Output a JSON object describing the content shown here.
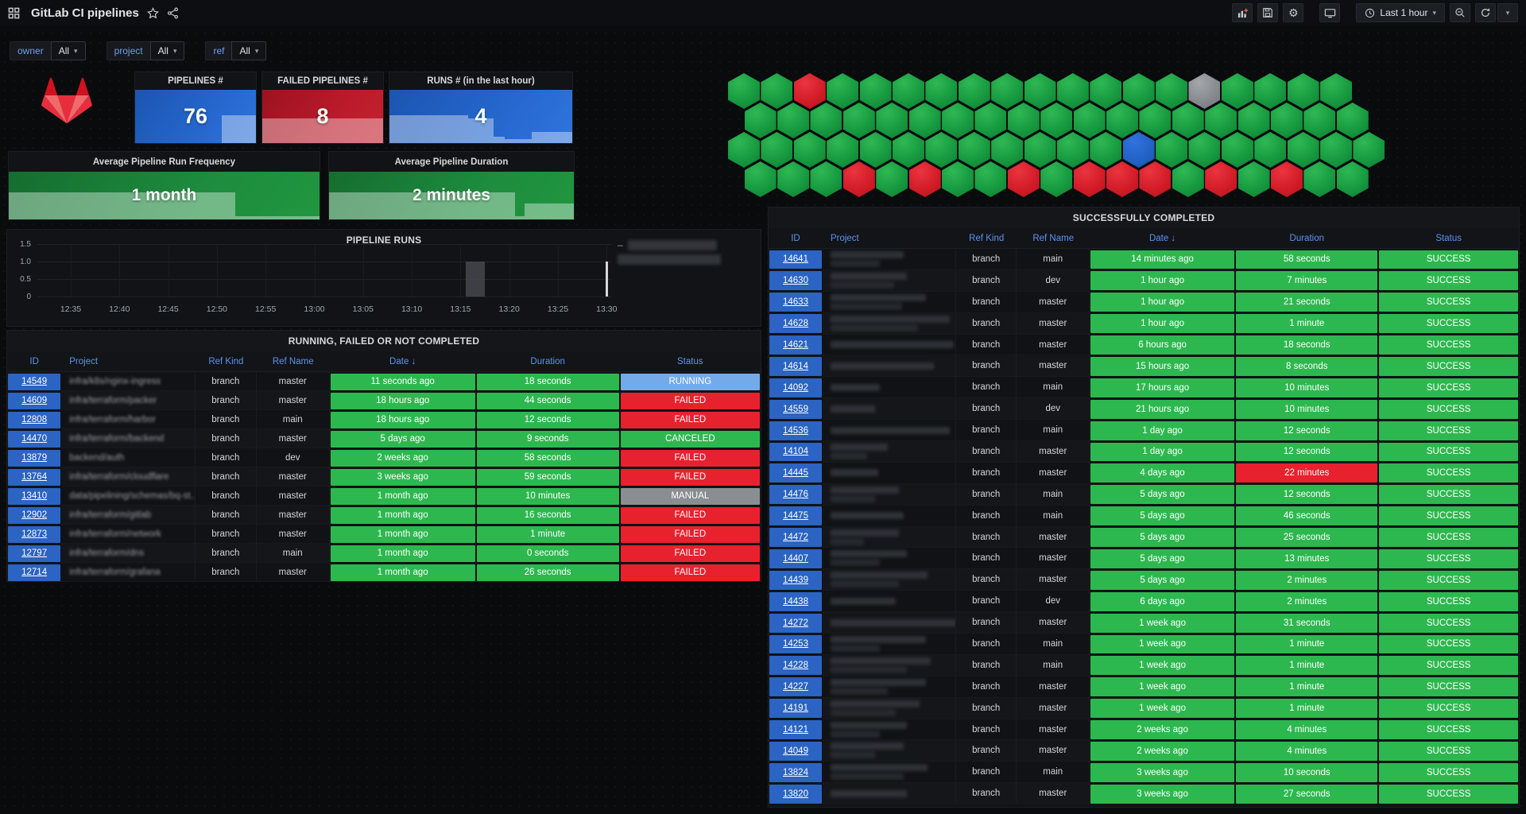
{
  "nav": {
    "title": "GitLab CI pipelines",
    "time_range": "Last 1 hour"
  },
  "filters": [
    {
      "label": "owner",
      "value": "All"
    },
    {
      "label": "project",
      "value": "All"
    },
    {
      "label": "ref",
      "value": "All"
    }
  ],
  "stat_panels": [
    {
      "title": "PIPELINES #",
      "value": "76",
      "theme": "blue",
      "spark": [
        [
          72,
          100,
          53
        ]
      ]
    },
    {
      "title": "FAILED PIPELINES #",
      "value": "8",
      "theme": "red",
      "spark": [
        [
          0,
          100,
          47
        ]
      ]
    },
    {
      "title": "RUNS # (in the last hour)",
      "value": "4",
      "theme": "blue",
      "spark": [
        [
          0,
          43,
          53
        ],
        [
          43,
          57,
          46
        ],
        [
          57,
          63,
          12
        ],
        [
          63,
          78,
          7
        ],
        [
          78,
          100,
          21
        ]
      ]
    }
  ],
  "average_panels": [
    {
      "title": "Average Pipeline Run Frequency",
      "value": "1 month",
      "theme": "green",
      "spark": [
        [
          0,
          73,
          56
        ],
        [
          73,
          100,
          7
        ]
      ]
    },
    {
      "title": "Average Pipeline Duration",
      "value": "2 minutes",
      "theme": "green",
      "spark": [
        [
          0,
          76,
          56
        ],
        [
          76,
          80,
          7
        ],
        [
          80,
          100,
          33
        ]
      ]
    }
  ],
  "hex_panel": {
    "status_colors": {
      "green": "#1ea04a",
      "red": "#d8202c",
      "gray": "#8d9196",
      "blue": "#2163c9"
    },
    "rows": [
      {
        "offset": false,
        "cells": "GGRGGGGGGGGGGGXGGGG"
      },
      {
        "offset": true,
        "cells": "GGGGGGGGGGGGGGGGGGG"
      },
      {
        "offset": false,
        "cells": "GGGGGGGGGGGGBGGGGGGG"
      },
      {
        "offset": true,
        "cells": "GGGRGRGGRGRRRGRGRGG"
      }
    ]
  },
  "pipeline_runs": {
    "title": "PIPELINE RUNS",
    "chart_data": {
      "type": "bar",
      "title": "PIPELINE RUNS",
      "x_ticks": [
        "12:35",
        "12:40",
        "12:45",
        "12:50",
        "12:55",
        "13:00",
        "13:05",
        "13:10",
        "13:15",
        "13:20",
        "13:25",
        "13:30"
      ],
      "y_ticks": [
        "1.5",
        "1.0",
        "0.5",
        "0"
      ],
      "ylim": [
        0,
        1.5
      ],
      "grid": true,
      "legend_position": "right",
      "legend_redacted_entries": 2,
      "bars": [
        {
          "x": "13:16",
          "y": 1
        },
        {
          "x": "13:17",
          "y": 1
        }
      ],
      "line_markers": [
        {
          "x": "13:30",
          "y": 1
        }
      ]
    },
    "legend_bar_widths": [
      112,
      130
    ]
  },
  "left_table": {
    "title": "RUNNING, FAILED OR NOT COMPLETED",
    "columns": [
      "ID",
      "Project",
      "Ref Kind",
      "Ref Name",
      "Date ↓",
      "Duration",
      "Status"
    ],
    "rows": [
      {
        "id": "14549",
        "project": "infra/k8s/nginx-ingress",
        "ref_kind": "branch",
        "ref_name": "master",
        "date": "11 seconds ago",
        "duration": "18 seconds",
        "status": "RUNNING",
        "status_color": "lightblue",
        "duration_color": "green"
      },
      {
        "id": "14609",
        "project": "infra/terraform/packer",
        "ref_kind": "branch",
        "ref_name": "master",
        "date": "18 hours ago",
        "duration": "44 seconds",
        "status": "FAILED",
        "status_color": "red",
        "duration_color": "green"
      },
      {
        "id": "12808",
        "project": "infra/terraform/harbor",
        "ref_kind": "branch",
        "ref_name": "main",
        "date": "18 hours ago",
        "duration": "12 seconds",
        "status": "FAILED",
        "status_color": "red",
        "duration_color": "green"
      },
      {
        "id": "14470",
        "project": "infra/terraform/backend",
        "ref_kind": "branch",
        "ref_name": "master",
        "date": "5 days ago",
        "duration": "9 seconds",
        "status": "CANCELED",
        "status_color": "green",
        "duration_color": "green"
      },
      {
        "id": "13879",
        "project": "backend/auth",
        "ref_kind": "branch",
        "ref_name": "dev",
        "date": "2 weeks ago",
        "duration": "58 seconds",
        "status": "FAILED",
        "status_color": "red",
        "duration_color": "green"
      },
      {
        "id": "13764",
        "project": "infra/terraform/cloudflare",
        "ref_kind": "branch",
        "ref_name": "master",
        "date": "3 weeks ago",
        "duration": "59 seconds",
        "status": "FAILED",
        "status_color": "red",
        "duration_color": "green"
      },
      {
        "id": "13410",
        "project": "data/pipelining/schemas/bq-st...",
        "ref_kind": "branch",
        "ref_name": "master",
        "date": "1 month ago",
        "duration": "10 minutes",
        "status": "MANUAL",
        "status_color": "gray",
        "duration_color": "green"
      },
      {
        "id": "12902",
        "project": "infra/terraform/gitlab",
        "ref_kind": "branch",
        "ref_name": "master",
        "date": "1 month ago",
        "duration": "16 seconds",
        "status": "FAILED",
        "status_color": "red",
        "duration_color": "green"
      },
      {
        "id": "12873",
        "project": "infra/terraform/network",
        "ref_kind": "branch",
        "ref_name": "master",
        "date": "1 month ago",
        "duration": "1 minute",
        "status": "FAILED",
        "status_color": "red",
        "duration_color": "green"
      },
      {
        "id": "12797",
        "project": "infra/terraform/dns",
        "ref_kind": "branch",
        "ref_name": "main",
        "date": "1 month ago",
        "duration": "0 seconds",
        "status": "FAILED",
        "status_color": "red",
        "duration_color": "green"
      },
      {
        "id": "12714",
        "project": "infra/terraform/grafana",
        "ref_kind": "branch",
        "ref_name": "master",
        "date": "1 month ago",
        "duration": "26 seconds",
        "status": "FAILED",
        "status_color": "red",
        "duration_color": "green"
      }
    ]
  },
  "right_table": {
    "title": "SUCCESSFULLY COMPLETED",
    "columns": [
      "ID",
      "Project",
      "Ref Kind",
      "Ref Name",
      "Date ↓",
      "Duration",
      "Status"
    ],
    "rows": [
      {
        "id": "14641",
        "redact": [
          92,
          62
        ],
        "ref_kind": "branch",
        "ref_name": "main",
        "date": "14 minutes ago",
        "duration": "58 seconds",
        "status": "SUCCESS",
        "status_color": "green",
        "duration_color": "green"
      },
      {
        "id": "14630",
        "redact": [
          96,
          80
        ],
        "ref_kind": "branch",
        "ref_name": "dev",
        "date": "1 hour ago",
        "duration": "7 minutes",
        "status": "SUCCESS",
        "status_color": "green",
        "duration_color": "green"
      },
      {
        "id": "14633",
        "redact": [
          120,
          90
        ],
        "ref_kind": "branch",
        "ref_name": "master",
        "date": "1 hour ago",
        "duration": "21 seconds",
        "status": "SUCCESS",
        "status_color": "green",
        "duration_color": "green"
      },
      {
        "id": "14628",
        "redact": [
          150,
          110
        ],
        "ref_kind": "branch",
        "ref_name": "master",
        "date": "1 hour ago",
        "duration": "1 minute",
        "status": "SUCCESS",
        "status_color": "green",
        "duration_color": "green"
      },
      {
        "id": "14621",
        "redact": [
          155,
          0
        ],
        "ref_kind": "branch",
        "ref_name": "master",
        "date": "6 hours ago",
        "duration": "18 seconds",
        "status": "SUCCESS",
        "status_color": "green",
        "duration_color": "green"
      },
      {
        "id": "14614",
        "redact": [
          130,
          0
        ],
        "ref_kind": "branch",
        "ref_name": "master",
        "date": "15 hours ago",
        "duration": "8 seconds",
        "status": "SUCCESS",
        "status_color": "green",
        "duration_color": "green"
      },
      {
        "id": "14092",
        "redact": [
          62,
          0
        ],
        "ref_kind": "branch",
        "ref_name": "main",
        "date": "17 hours ago",
        "duration": "10 minutes",
        "status": "SUCCESS",
        "status_color": "green",
        "duration_color": "green"
      },
      {
        "id": "14559",
        "redact": [
          56,
          0
        ],
        "ref_kind": "branch",
        "ref_name": "dev",
        "date": "21 hours ago",
        "duration": "10 minutes",
        "status": "SUCCESS",
        "status_color": "green",
        "duration_color": "green"
      },
      {
        "id": "14536",
        "redact": [
          150,
          0
        ],
        "ref_kind": "branch",
        "ref_name": "main",
        "date": "1 day ago",
        "duration": "12 seconds",
        "status": "SUCCESS",
        "status_color": "green",
        "duration_color": "green"
      },
      {
        "id": "14104",
        "redact": [
          72,
          46
        ],
        "ref_kind": "branch",
        "ref_name": "master",
        "date": "1 day ago",
        "duration": "12 seconds",
        "status": "SUCCESS",
        "status_color": "green",
        "duration_color": "green"
      },
      {
        "id": "14445",
        "redact": [
          60,
          0
        ],
        "ref_kind": "branch",
        "ref_name": "master",
        "date": "4 days ago",
        "duration": "22 minutes",
        "status": "SUCCESS",
        "status_color": "green",
        "duration_color": "red"
      },
      {
        "id": "14476",
        "redact": [
          86,
          56
        ],
        "ref_kind": "branch",
        "ref_name": "main",
        "date": "5 days ago",
        "duration": "12 seconds",
        "status": "SUCCESS",
        "status_color": "green",
        "duration_color": "green"
      },
      {
        "id": "14475",
        "redact": [
          92,
          0
        ],
        "ref_kind": "branch",
        "ref_name": "main",
        "date": "5 days ago",
        "duration": "46 seconds",
        "status": "SUCCESS",
        "status_color": "green",
        "duration_color": "green"
      },
      {
        "id": "14472",
        "redact": [
          86,
          42
        ],
        "ref_kind": "branch",
        "ref_name": "master",
        "date": "5 days ago",
        "duration": "25 seconds",
        "status": "SUCCESS",
        "status_color": "green",
        "duration_color": "green"
      },
      {
        "id": "14407",
        "redact": [
          96,
          62
        ],
        "ref_kind": "branch",
        "ref_name": "master",
        "date": "5 days ago",
        "duration": "13 minutes",
        "status": "SUCCESS",
        "status_color": "green",
        "duration_color": "green"
      },
      {
        "id": "14439",
        "redact": [
          122,
          86
        ],
        "ref_kind": "branch",
        "ref_name": "master",
        "date": "5 days ago",
        "duration": "2 minutes",
        "status": "SUCCESS",
        "status_color": "green",
        "duration_color": "green"
      },
      {
        "id": "14438",
        "redact": [
          82,
          0
        ],
        "ref_kind": "branch",
        "ref_name": "dev",
        "date": "6 days ago",
        "duration": "2 minutes",
        "status": "SUCCESS",
        "status_color": "green",
        "duration_color": "green"
      },
      {
        "id": "14272",
        "redact": [
          158,
          0
        ],
        "ref_kind": "branch",
        "ref_name": "master",
        "date": "1 week ago",
        "duration": "31 seconds",
        "status": "SUCCESS",
        "status_color": "green",
        "duration_color": "green"
      },
      {
        "id": "14253",
        "redact": [
          120,
          62
        ],
        "ref_kind": "branch",
        "ref_name": "main",
        "date": "1 week ago",
        "duration": "1 minute",
        "status": "SUCCESS",
        "status_color": "green",
        "duration_color": "green"
      },
      {
        "id": "14228",
        "redact": [
          126,
          96
        ],
        "ref_kind": "branch",
        "ref_name": "main",
        "date": "1 week ago",
        "duration": "1 minute",
        "status": "SUCCESS",
        "status_color": "green",
        "duration_color": "green"
      },
      {
        "id": "14227",
        "redact": [
          120,
          72
        ],
        "ref_kind": "branch",
        "ref_name": "master",
        "date": "1 week ago",
        "duration": "1 minute",
        "status": "SUCCESS",
        "status_color": "green",
        "duration_color": "green"
      },
      {
        "id": "14191",
        "redact": [
          112,
          82
        ],
        "ref_kind": "branch",
        "ref_name": "master",
        "date": "1 week ago",
        "duration": "1 minute",
        "status": "SUCCESS",
        "status_color": "green",
        "duration_color": "green"
      },
      {
        "id": "14121",
        "redact": [
          96,
          62
        ],
        "ref_kind": "branch",
        "ref_name": "master",
        "date": "2 weeks ago",
        "duration": "4 minutes",
        "status": "SUCCESS",
        "status_color": "green",
        "duration_color": "green"
      },
      {
        "id": "14049",
        "redact": [
          92,
          56
        ],
        "ref_kind": "branch",
        "ref_name": "master",
        "date": "2 weeks ago",
        "duration": "4 minutes",
        "status": "SUCCESS",
        "status_color": "green",
        "duration_color": "green"
      },
      {
        "id": "13824",
        "redact": [
          122,
          92
        ],
        "ref_kind": "branch",
        "ref_name": "main",
        "date": "3 weeks ago",
        "duration": "10 seconds",
        "status": "SUCCESS",
        "status_color": "green",
        "duration_color": "green"
      },
      {
        "id": "13820",
        "redact": [
          96,
          0
        ],
        "ref_kind": "branch",
        "ref_name": "master",
        "date": "3 weeks ago",
        "duration": "27 seconds",
        "status": "SUCCESS",
        "status_color": "green",
        "duration_color": "green"
      }
    ]
  }
}
